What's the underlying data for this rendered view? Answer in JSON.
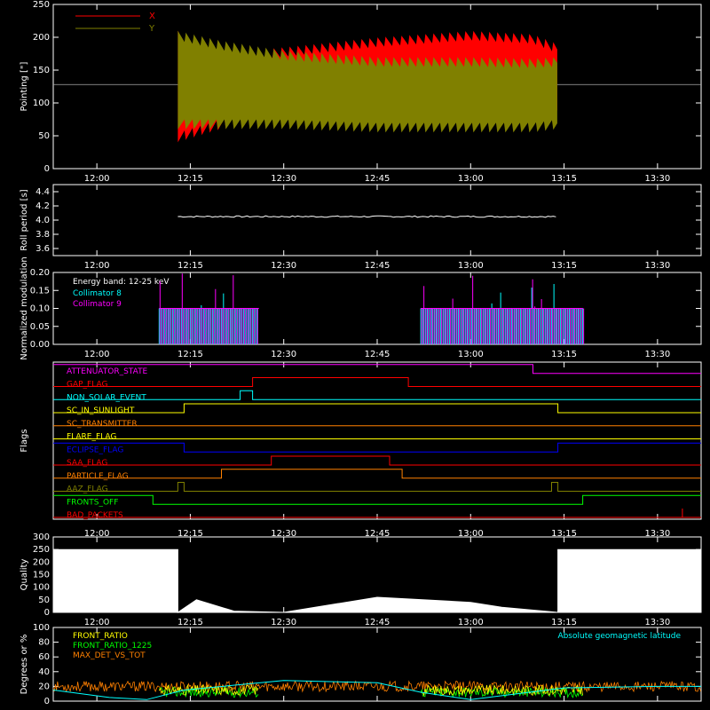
{
  "time_axis": {
    "range": [
      "11:53",
      "13:37"
    ],
    "ticks": [
      "12:00",
      "12:15",
      "12:30",
      "12:45",
      "13:00",
      "13:15",
      "13:30"
    ],
    "obs_start": "12:13",
    "obs_end": "13:14"
  },
  "chart_data": [
    {
      "type": "line",
      "title": "",
      "ylabel": "Pointing [\"]",
      "ylim": [
        0,
        250
      ],
      "yticks": [
        0,
        50,
        100,
        150,
        200,
        250
      ],
      "reference_line": 128,
      "series": [
        {
          "name": "X",
          "color": "#ff0000",
          "x": [
            "12:13",
            "12:20",
            "12:30",
            "12:45",
            "13:00",
            "13:10",
            "13:14"
          ],
          "y_min": [
            40,
            60,
            75,
            90,
            85,
            80,
            80
          ],
          "y_max": [
            210,
            175,
            185,
            200,
            210,
            205,
            190
          ]
        },
        {
          "name": "Y",
          "color": "#808000",
          "x": [
            "12:13",
            "12:20",
            "12:30",
            "12:45",
            "13:00",
            "13:10",
            "13:14"
          ],
          "y_min": [
            60,
            60,
            60,
            55,
            55,
            55,
            60
          ],
          "y_max": [
            210,
            195,
            180,
            170,
            170,
            168,
            170
          ]
        }
      ],
      "legend": "top-left"
    },
    {
      "type": "line",
      "ylabel": "Roll period [s]",
      "ylim": [
        3.5,
        4.5
      ],
      "yticks": [
        "3.6",
        "3.8",
        "4.0",
        "4.2",
        "4.4"
      ],
      "series": [
        {
          "color": "#ffffff",
          "x": [
            "12:13",
            "13:14"
          ],
          "y": [
            4.05,
            4.05
          ]
        }
      ]
    },
    {
      "type": "bar",
      "ylabel": "Normalized modulation",
      "ylim": [
        0,
        0.2
      ],
      "yticks": [
        "0.00",
        "0.05",
        "0.10",
        "0.15",
        "0.20"
      ],
      "annotation": "Energy band: 12-25 keV",
      "series": [
        {
          "name": "Collimator 8",
          "color": "#00ffff",
          "segments": [
            [
              "12:10",
              "12:26"
            ],
            [
              "12:52",
              "13:18"
            ]
          ],
          "base_value": 0.1
        },
        {
          "name": "Collimator 9",
          "color": "#ff00ff",
          "segments": [
            [
              "12:10",
              "12:26"
            ],
            [
              "12:52",
              "13:18"
            ]
          ],
          "base_value": 0.1
        }
      ]
    },
    {
      "type": "line",
      "ylabel": "Flags",
      "series": [
        {
          "name": "ATTENUATOR_STATE",
          "color": "#ff00ff",
          "x": [
            "11:53",
            "13:10",
            "13:10",
            "13:37"
          ],
          "state": [
            1,
            1,
            0,
            0
          ]
        },
        {
          "name": "GAP_FLAG",
          "color": "#ff0000",
          "x": [
            "11:53",
            "12:25",
            "12:25",
            "12:50",
            "12:50",
            "13:37"
          ],
          "state": [
            0,
            0,
            1,
            1,
            0,
            0
          ]
        },
        {
          "name": "NON_SOLAR_EVENT",
          "color": "#00ffff",
          "x": [
            "11:53",
            "12:23",
            "12:23",
            "12:25",
            "12:25",
            "13:37"
          ],
          "state": [
            0,
            0,
            1,
            1,
            0,
            0
          ]
        },
        {
          "name": "SC_IN_SUNLIGHT",
          "color": "#ffff00",
          "x": [
            "11:53",
            "12:14",
            "12:14",
            "13:14",
            "13:14",
            "13:37"
          ],
          "state": [
            0,
            0,
            1,
            1,
            0,
            0
          ]
        },
        {
          "name": "SC_TRANSMITTER",
          "color": "#ff8000",
          "x": [
            "11:53",
            "13:37"
          ],
          "state": [
            0,
            0
          ]
        },
        {
          "name": "FLARE_FLAG",
          "color": "#ffff00",
          "x": [
            "11:53",
            "13:37"
          ],
          "state": [
            0,
            0
          ]
        },
        {
          "name": "ECLIPSE_FLAG",
          "color": "#0000ff",
          "x": [
            "11:53",
            "12:14",
            "12:14",
            "13:14",
            "13:14",
            "13:37"
          ],
          "state": [
            1,
            1,
            0,
            0,
            1,
            1
          ]
        },
        {
          "name": "SAA_FLAG",
          "color": "#ff0000",
          "x": [
            "11:53",
            "12:28",
            "12:28",
            "12:47",
            "12:47",
            "13:37"
          ],
          "state": [
            0,
            0,
            1,
            1,
            0,
            0
          ]
        },
        {
          "name": "PARTICLE_FLAG",
          "color": "#ff8000",
          "x": [
            "11:53",
            "12:20",
            "12:20",
            "12:49",
            "12:49",
            "13:37"
          ],
          "state": [
            0,
            0,
            1,
            1,
            0,
            0
          ]
        },
        {
          "name": "AAZ_FLAG",
          "color": "#808000",
          "x": [
            "11:53",
            "12:13",
            "12:13",
            "12:14",
            "12:14",
            "13:13",
            "13:13",
            "13:14",
            "13:14",
            "13:37"
          ],
          "state": [
            0,
            0,
            1,
            1,
            0,
            0,
            1,
            1,
            0,
            0
          ]
        },
        {
          "name": "FRONTS_OFF",
          "color": "#00ff00",
          "x": [
            "11:53",
            "12:09",
            "12:09",
            "13:18",
            "13:18",
            "13:37"
          ],
          "state": [
            1,
            1,
            0,
            0,
            1,
            1
          ]
        },
        {
          "name": "BAD_PACKETS",
          "color": "#ff0000",
          "x": [
            "11:53",
            "13:34",
            "13:34",
            "13:34",
            "13:34",
            "13:37"
          ],
          "state": [
            0,
            0,
            1,
            1,
            0,
            0
          ]
        }
      ]
    },
    {
      "type": "area",
      "ylabel": "Quality",
      "ylim": [
        0,
        300
      ],
      "yticks": [
        0,
        50,
        100,
        150,
        200,
        250,
        300
      ],
      "series": [
        {
          "color": "#ffffff",
          "x": [
            "11:53",
            "12:13",
            "12:13",
            "12:16",
            "12:22",
            "12:30",
            "12:45",
            "13:00",
            "13:05",
            "13:14",
            "13:14",
            "13:37"
          ],
          "y": [
            250,
            250,
            0,
            50,
            5,
            0,
            60,
            40,
            20,
            0,
            250,
            250
          ]
        }
      ]
    },
    {
      "type": "line",
      "ylabel": "Degrees or %",
      "ylim": [
        0,
        100
      ],
      "yticks": [
        0,
        20,
        40,
        60,
        80,
        100
      ],
      "annotation": "Absolute geomagnetic latitude",
      "series": [
        {
          "name": "FRONT_RATIO",
          "color": "#ffff00",
          "segments": [
            [
              "12:10",
              "12:26"
            ],
            [
              "12:52",
              "13:18"
            ]
          ],
          "baseline": 15
        },
        {
          "name": "FRONT_RATIO_1225",
          "color": "#00ff00",
          "segments": [
            [
              "12:10",
              "12:26"
            ],
            [
              "12:52",
              "13:18"
            ]
          ],
          "baseline": 12
        },
        {
          "name": "MAX_DET_VS_TOT",
          "color": "#ff8000",
          "segments": [
            [
              "11:53",
              "13:37"
            ]
          ],
          "baseline": 20
        },
        {
          "name": "Absolute geomagnetic latitude",
          "color": "#00ffff",
          "x": [
            "11:53",
            "12:02",
            "12:08",
            "12:14",
            "12:30",
            "12:45",
            "12:52",
            "13:00",
            "13:15",
            "13:30",
            "13:37"
          ],
          "y": [
            15,
            5,
            2,
            15,
            28,
            25,
            12,
            2,
            18,
            20,
            20
          ]
        }
      ]
    }
  ]
}
